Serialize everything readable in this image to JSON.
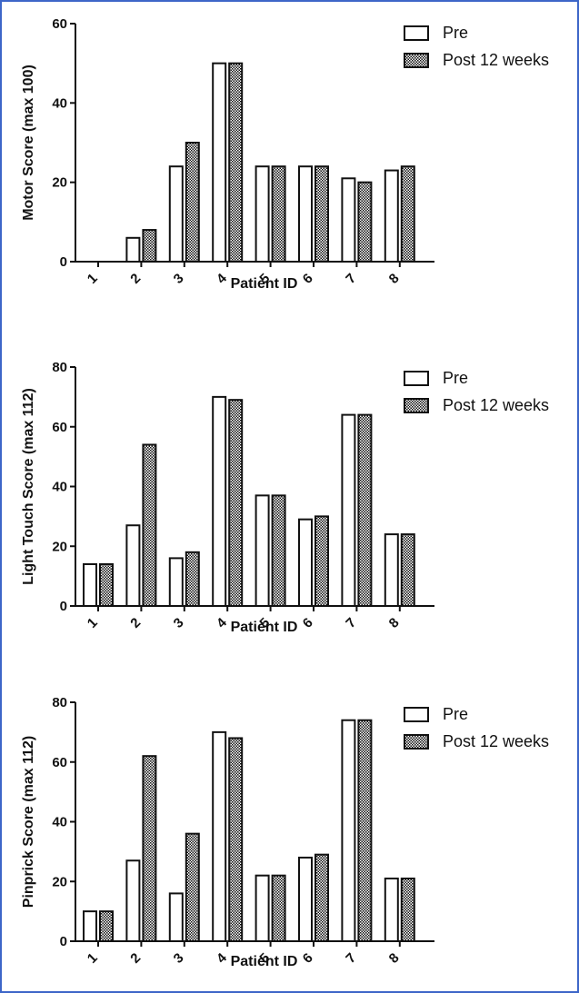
{
  "colors": {
    "frame_border": "#3d66c8",
    "pre_fill": "#ffffff",
    "post_pattern": "crosshatch"
  },
  "chart_data": [
    {
      "type": "bar",
      "categories": [
        "1",
        "2",
        "3",
        "4",
        "5",
        "6",
        "7",
        "8"
      ],
      "series": [
        {
          "name": "Pre",
          "values": [
            0,
            6,
            24,
            50,
            24,
            24,
            21,
            23
          ]
        },
        {
          "name": "Post 12 weeks",
          "values": [
            0,
            8,
            30,
            50,
            24,
            24,
            20,
            24
          ]
        }
      ],
      "xlabel": "Patient ID",
      "ylabel": "Motor Score (max 100)",
      "ylim": [
        0,
        60
      ],
      "yticks": [
        "0",
        "20",
        "40",
        "60"
      ],
      "legend_position": "top-right"
    },
    {
      "type": "bar",
      "categories": [
        "1",
        "2",
        "3",
        "4",
        "5",
        "6",
        "7",
        "8"
      ],
      "series": [
        {
          "name": "Pre",
          "values": [
            14,
            27,
            16,
            70,
            37,
            29,
            64,
            24
          ]
        },
        {
          "name": "Post 12 weeks",
          "values": [
            14,
            54,
            18,
            69,
            37,
            30,
            64,
            24
          ]
        }
      ],
      "xlabel": "Patient ID",
      "ylabel": "Light Touch Score (max 112)",
      "ylim": [
        0,
        80
      ],
      "yticks": [
        "0",
        "20",
        "40",
        "60",
        "80"
      ],
      "legend_position": "top-right"
    },
    {
      "type": "bar",
      "categories": [
        "1",
        "2",
        "3",
        "4",
        "5",
        "6",
        "7",
        "8"
      ],
      "series": [
        {
          "name": "Pre",
          "values": [
            10,
            27,
            16,
            70,
            22,
            28,
            74,
            21
          ]
        },
        {
          "name": "Post 12 weeks",
          "values": [
            10,
            62,
            36,
            68,
            22,
            29,
            74,
            21
          ]
        }
      ],
      "xlabel": "Patient ID",
      "ylabel": "Pinprick Score (max 112)",
      "ylim": [
        0,
        80
      ],
      "yticks": [
        "0",
        "20",
        "40",
        "60",
        "80"
      ],
      "legend_position": "top-right"
    }
  ]
}
